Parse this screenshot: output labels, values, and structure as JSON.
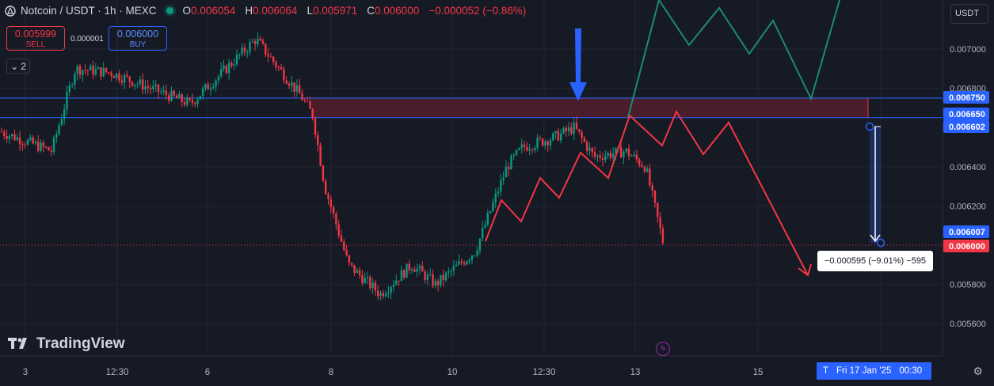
{
  "header": {
    "symbol": "Notcoin / USDT · 1h · MEXC",
    "o_label": "O",
    "o_value": "0.006054",
    "h_label": "H",
    "h_value": "0.006064",
    "l_label": "L",
    "l_value": "0.005971",
    "c_label": "C",
    "c_value": "0.006000",
    "change": "−0.000052 (−0.86%)"
  },
  "trade": {
    "sell_price": "0.005999",
    "sell_label": "SELL",
    "spread": "0.000001",
    "buy_price": "0.006000",
    "buy_label": "BUY"
  },
  "layers_count": "2",
  "currency": "USDT",
  "brand": "TradingView",
  "measurement": "−0.000595 (−9.01%) −595",
  "date_label": {
    "prefix": "T",
    "date": "Fri 17 Jan '25",
    "time": "00:30"
  },
  "colors": {
    "bg": "#161a25",
    "up": "#089981",
    "down": "#f23645",
    "zone": "#5b1f2c",
    "blue": "#2962ff",
    "green_path": "#1d8a6f",
    "red_path": "#f23645",
    "arrow": "#2962ff"
  },
  "chart_data": {
    "type": "candlestick",
    "y_axis": {
      "ticks": [
        "0.007000",
        "0.006800",
        "0.006400",
        "0.006200",
        "0.005800",
        "0.005600"
      ],
      "range": [
        0.00546,
        0.00713
      ],
      "side": "right"
    },
    "x_axis": {
      "ticks": [
        "3",
        "12:30",
        "6",
        "8",
        "10",
        "12:30",
        "13",
        "15"
      ]
    },
    "price_labels": [
      {
        "value": "0.006750",
        "style": "blue"
      },
      {
        "value": "0.006650",
        "style": "blue"
      },
      {
        "value": "0.006602",
        "style": "blue"
      },
      {
        "value": "0.006007",
        "style": "blue"
      },
      {
        "value": "0.006000",
        "style": "red"
      }
    ],
    "zone": {
      "top": 0.00675,
      "bottom": 0.00665
    },
    "current_price": 0.006,
    "key_points": [
      {
        "t": 0,
        "price": 0.00658
      },
      {
        "t": 65,
        "price": 0.00648
      },
      {
        "t": 95,
        "price": 0.0069
      },
      {
        "t": 140,
        "price": 0.00688
      },
      {
        "t": 240,
        "price": 0.00672
      },
      {
        "t": 323,
        "price": 0.00705
      },
      {
        "t": 380,
        "price": 0.00676
      },
      {
        "t": 395,
        "price": 0.00666
      },
      {
        "t": 410,
        "price": 0.0063
      },
      {
        "t": 440,
        "price": 0.0059
      },
      {
        "t": 480,
        "price": 0.00575
      },
      {
        "t": 520,
        "price": 0.0059
      },
      {
        "t": 550,
        "price": 0.0058
      },
      {
        "t": 600,
        "price": 0.00597
      },
      {
        "t": 640,
        "price": 0.0064
      },
      {
        "t": 660,
        "price": 0.0065
      },
      {
        "t": 700,
        "price": 0.00655
      },
      {
        "t": 725,
        "price": 0.0066
      },
      {
        "t": 750,
        "price": 0.00645
      },
      {
        "t": 790,
        "price": 0.00648
      },
      {
        "t": 815,
        "price": 0.0064
      },
      {
        "t": 838,
        "price": 0.006
      }
    ]
  }
}
